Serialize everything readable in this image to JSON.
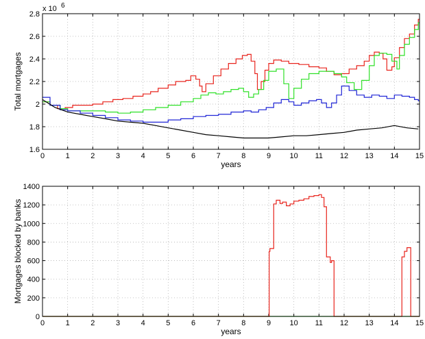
{
  "chart_data": [
    {
      "type": "line",
      "xlabel": "years",
      "ylabel": "Total mortgages",
      "y_multiplier_label": "x 10",
      "y_multiplier_exponent": "6",
      "xlim": [
        0,
        15
      ],
      "ylim": [
        1.6,
        2.8
      ],
      "xticks": [
        "0",
        "1",
        "2",
        "3",
        "4",
        "5",
        "6",
        "7",
        "8",
        "9",
        "10",
        "11",
        "12",
        "13",
        "14",
        "15"
      ],
      "yticks": [
        "1.6",
        "1.8",
        "2",
        "2.2",
        "2.4",
        "2.6",
        "2.8"
      ],
      "grid": true,
      "series": [
        {
          "color": "#e8231c",
          "step": true,
          "x": [
            0,
            0.3,
            0.6,
            0.9,
            1.2,
            1.6,
            2.0,
            2.4,
            2.8,
            3.2,
            3.6,
            4.0,
            4.3,
            4.6,
            5.0,
            5.3,
            5.7,
            5.9,
            6.1,
            6.25,
            6.35,
            6.5,
            6.8,
            7.1,
            7.4,
            7.7,
            7.95,
            8.15,
            8.3,
            8.45,
            8.55,
            8.7,
            8.85,
            9.0,
            9.2,
            9.5,
            9.8,
            10.2,
            10.6,
            11.0,
            11.3,
            11.6,
            11.9,
            12.2,
            12.5,
            12.8,
            13.0,
            13.2,
            13.4,
            13.55,
            13.7,
            13.9,
            14.0,
            14.2,
            14.4,
            14.6,
            14.8,
            14.95
          ],
          "y": [
            2.02,
            1.99,
            1.96,
            1.97,
            1.99,
            1.99,
            2.0,
            2.02,
            2.04,
            2.05,
            2.07,
            2.09,
            2.11,
            2.14,
            2.17,
            2.2,
            2.21,
            2.25,
            2.22,
            2.16,
            2.11,
            2.18,
            2.25,
            2.31,
            2.36,
            2.4,
            2.43,
            2.44,
            2.38,
            2.27,
            2.13,
            2.2,
            2.3,
            2.36,
            2.39,
            2.38,
            2.36,
            2.35,
            2.33,
            2.32,
            2.29,
            2.26,
            2.27,
            2.31,
            2.34,
            2.38,
            2.43,
            2.46,
            2.45,
            2.4,
            2.3,
            2.33,
            2.41,
            2.5,
            2.58,
            2.62,
            2.7,
            2.75
          ]
        },
        {
          "color": "#2de026",
          "step": true,
          "x": [
            0,
            0.3,
            0.7,
            1.0,
            1.5,
            2.0,
            2.5,
            3.0,
            3.5,
            4.0,
            4.5,
            5.0,
            5.5,
            6.0,
            6.3,
            6.6,
            6.9,
            7.2,
            7.5,
            7.8,
            8.0,
            8.2,
            8.4,
            8.6,
            8.8,
            9.0,
            9.3,
            9.6,
            9.8,
            10.0,
            10.3,
            10.6,
            11.0,
            11.3,
            11.6,
            11.9,
            12.1,
            12.4,
            12.7,
            13.0,
            13.2,
            13.4,
            13.7,
            13.9,
            14.1,
            14.2,
            14.4,
            14.6,
            14.8,
            14.95
          ],
          "y": [
            2.02,
            1.99,
            1.96,
            1.94,
            1.94,
            1.94,
            1.93,
            1.92,
            1.93,
            1.95,
            1.97,
            1.99,
            2.02,
            2.05,
            2.08,
            2.1,
            2.09,
            2.11,
            2.13,
            2.14,
            2.11,
            2.06,
            2.09,
            2.13,
            2.21,
            2.29,
            2.31,
            2.18,
            2.05,
            2.14,
            2.22,
            2.27,
            2.29,
            2.29,
            2.27,
            2.24,
            2.19,
            2.13,
            2.21,
            2.34,
            2.43,
            2.45,
            2.44,
            2.38,
            2.31,
            2.43,
            2.53,
            2.59,
            2.66,
            2.72
          ]
        },
        {
          "color": "#1f24d6",
          "step": true,
          "x": [
            0,
            0.3,
            0.7,
            1.0,
            1.5,
            2.0,
            2.5,
            3.0,
            3.5,
            4.0,
            4.5,
            5.0,
            5.5,
            6.0,
            6.5,
            7.0,
            7.5,
            8.0,
            8.3,
            8.6,
            8.9,
            9.2,
            9.5,
            9.8,
            10.0,
            10.3,
            10.6,
            10.9,
            11.1,
            11.3,
            11.5,
            11.7,
            11.9,
            12.2,
            12.5,
            12.8,
            13.1,
            13.4,
            13.7,
            14.0,
            14.3,
            14.6,
            14.8,
            14.95
          ],
          "y": [
            2.06,
            1.99,
            1.95,
            1.94,
            1.92,
            1.9,
            1.88,
            1.86,
            1.85,
            1.84,
            1.84,
            1.86,
            1.87,
            1.89,
            1.9,
            1.91,
            1.93,
            1.94,
            1.93,
            1.95,
            1.97,
            2.01,
            2.04,
            2.02,
            1.99,
            2.01,
            2.03,
            2.04,
            2.01,
            1.97,
            2.01,
            2.08,
            2.16,
            2.12,
            2.08,
            2.06,
            2.08,
            2.07,
            2.05,
            2.08,
            2.07,
            2.06,
            2.04,
            2.03
          ]
        },
        {
          "color": "#000000",
          "step": false,
          "x": [
            0,
            0.5,
            1.0,
            1.5,
            2.0,
            2.5,
            3.0,
            3.5,
            4.0,
            4.5,
            5.0,
            5.5,
            6.0,
            6.5,
            7.0,
            7.5,
            8.0,
            8.5,
            9.0,
            9.5,
            10.0,
            10.5,
            11.0,
            11.5,
            12.0,
            12.5,
            13.0,
            13.5,
            14.0,
            14.5,
            14.95
          ],
          "y": [
            2.04,
            1.97,
            1.93,
            1.91,
            1.89,
            1.87,
            1.85,
            1.84,
            1.83,
            1.81,
            1.79,
            1.77,
            1.75,
            1.73,
            1.72,
            1.71,
            1.7,
            1.7,
            1.7,
            1.71,
            1.72,
            1.72,
            1.73,
            1.74,
            1.75,
            1.77,
            1.78,
            1.79,
            1.81,
            1.79,
            1.78
          ]
        }
      ]
    },
    {
      "type": "line",
      "xlabel": "years",
      "ylabel": "Mortgages blocked by banks",
      "xlim": [
        0,
        15
      ],
      "ylim": [
        0,
        1400
      ],
      "xticks": [
        "0",
        "1",
        "2",
        "3",
        "4",
        "5",
        "6",
        "7",
        "8",
        "9",
        "10",
        "11",
        "12",
        "13",
        "14",
        "15"
      ],
      "yticks": [
        "0",
        "200",
        "400",
        "600",
        "800",
        "1000",
        "1200",
        "1400"
      ],
      "grid": true,
      "series": [
        {
          "color": "#2de026",
          "step": false,
          "x": [
            0,
            15
          ],
          "y": [
            0,
            0
          ]
        },
        {
          "color": "#e8231c",
          "step": true,
          "x": [
            0,
            9.02,
            9.05,
            9.2,
            9.3,
            9.45,
            9.55,
            9.7,
            9.85,
            10.0,
            10.2,
            10.4,
            10.6,
            10.8,
            11.0,
            11.1,
            11.2,
            11.3,
            11.45,
            11.5,
            11.6,
            11.7,
            14.3,
            14.4,
            14.5,
            14.65,
            14.95
          ],
          "y": [
            0,
            700,
            730,
            1210,
            1250,
            1215,
            1230,
            1190,
            1210,
            1240,
            1250,
            1265,
            1290,
            1300,
            1310,
            1280,
            1180,
            640,
            580,
            600,
            0,
            0,
            640,
            700,
            740,
            0,
            0
          ]
        }
      ]
    }
  ]
}
